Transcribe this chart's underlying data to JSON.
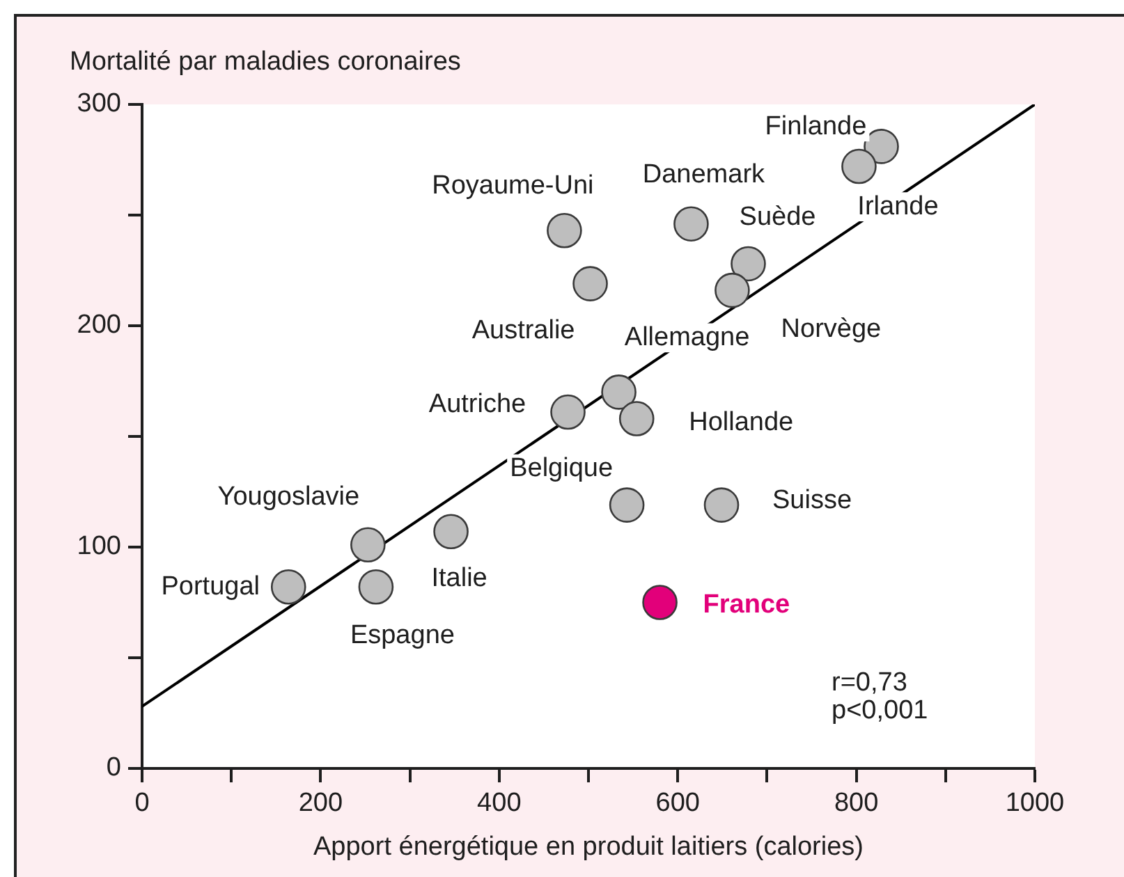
{
  "chart_data": {
    "type": "scatter",
    "xlabel": "Apport énergétique en produit laitiers (calories)",
    "ylabel": "Mortalité par maladies coronaires",
    "series": [
      {
        "color": "#bebebe",
        "x": [
          164,
          253,
          262,
          346,
          543,
          649,
          477,
          534,
          554,
          502,
          473,
          615,
          679,
          661,
          828,
          803
        ],
        "values": [
          82,
          101,
          82,
          107,
          119,
          119,
          161,
          170,
          158,
          219,
          243,
          246,
          228,
          216,
          281,
          272
        ]
      },
      {
        "name": "France",
        "color": "#e2007a",
        "x": [
          580
        ],
        "values": [
          75
        ]
      },
      {
        "type": "line",
        "color": "#000000",
        "marker": "none",
        "x": [
          0,
          1000
        ],
        "values": [
          28,
          300
        ]
      }
    ],
    "xlim": [
      0,
      1000
    ],
    "xticks": [
      0,
      {
        "value": 100,
        "label": null
      },
      200,
      {
        "value": 300,
        "label": null
      },
      400,
      {
        "value": 500,
        "label": null
      },
      600,
      {
        "value": 700,
        "label": null
      },
      800,
      {
        "value": 900,
        "label": null
      },
      1000
    ],
    "ylim": [
      0,
      300
    ],
    "yticks": [
      0,
      {
        "value": 50,
        "label": null
      },
      100,
      {
        "value": 150,
        "label": null
      },
      200,
      {
        "value": 250,
        "label": null
      },
      300
    ],
    "marker": "circle",
    "legend": false,
    "annotations": [
      {
        "text": "Portugal",
        "x": 164,
        "y": 82
      },
      {
        "text": "Yougoslavie",
        "x": 253,
        "y": 101
      },
      {
        "text": "Espagne",
        "x": 262,
        "y": 82
      },
      {
        "text": "Italie",
        "x": 346,
        "y": 107
      },
      {
        "text": "Belgique",
        "x": 543,
        "y": 119
      },
      {
        "text": "Suisse",
        "x": 649,
        "y": 119
      },
      {
        "text": "Autriche",
        "x": 477,
        "y": 161
      },
      {
        "text": "Allemagne",
        "x": 534,
        "y": 170
      },
      {
        "text": "Hollande",
        "x": 554,
        "y": 158
      },
      {
        "text": "Australie",
        "x": 502,
        "y": 219
      },
      {
        "text": "Royaume-Uni",
        "x": 473,
        "y": 243
      },
      {
        "text": "Danemark",
        "x": 615,
        "y": 246
      },
      {
        "text": "Suède",
        "x": 679,
        "y": 228
      },
      {
        "text": "Norvège",
        "x": 661,
        "y": 216
      },
      {
        "text": "Finlande",
        "x": 828,
        "y": 281
      },
      {
        "text": "Irlande",
        "x": 803,
        "y": 272
      },
      "r=0,73",
      "p<0,001"
    ]
  }
}
